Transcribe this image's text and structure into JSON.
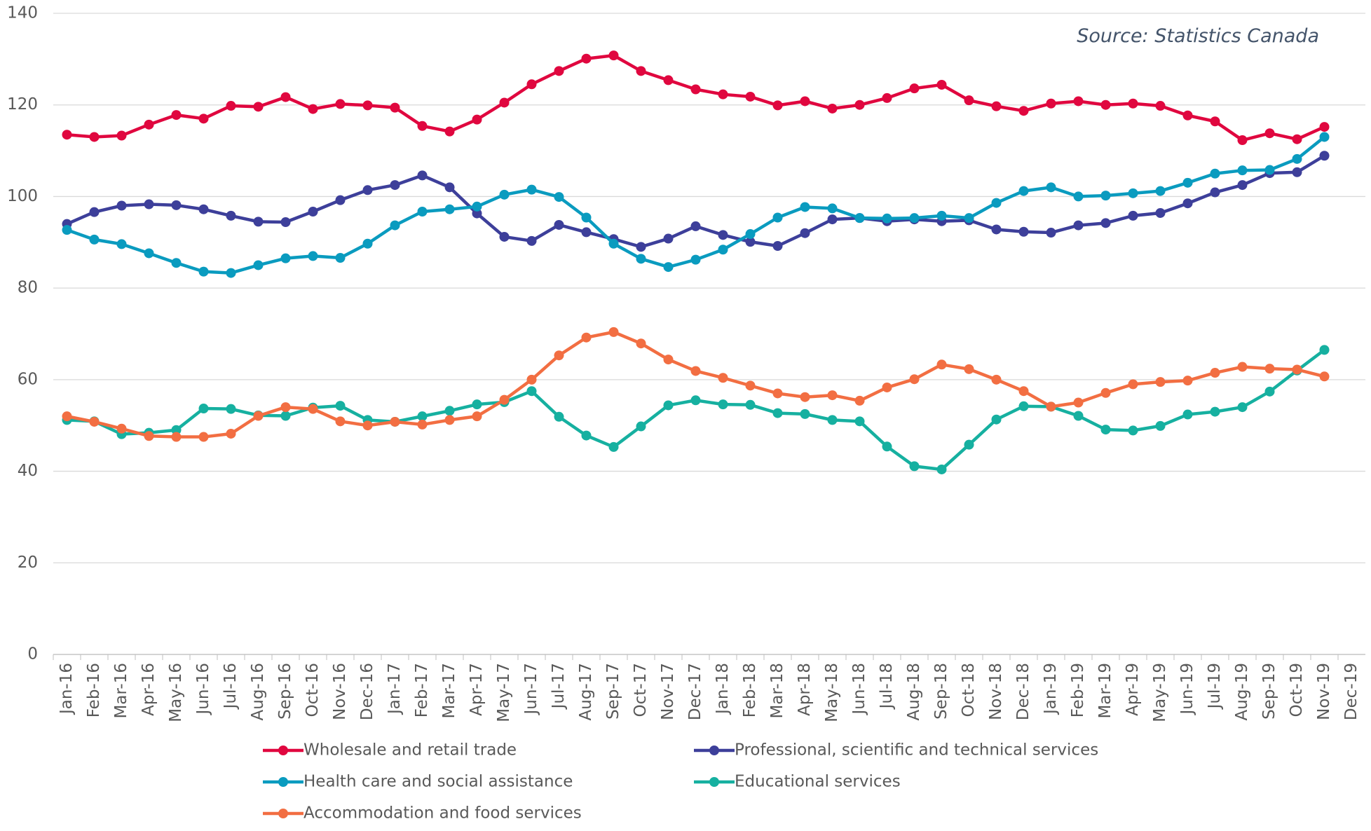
{
  "chart_data": {
    "type": "line",
    "source": "Source: Statistics Canada",
    "categories": [
      "Jan-16",
      "Feb-16",
      "Mar-16",
      "Apr-16",
      "May-16",
      "Jun-16",
      "Jul-16",
      "Aug-16",
      "Sep-16",
      "Oct-16",
      "Nov-16",
      "Dec-16",
      "Jan-17",
      "Feb-17",
      "Mar-17",
      "Apr-17",
      "May-17",
      "Jun-17",
      "Jul-17",
      "Aug-17",
      "Sep-17",
      "Oct-17",
      "Nov-17",
      "Dec-17",
      "Jan-18",
      "Feb-18",
      "Mar-18",
      "Apr-18",
      "May-18",
      "Jun-18",
      "Jul-18",
      "Aug-18",
      "Sep-18",
      "Oct-18",
      "Nov-18",
      "Dec-18",
      "Jan-19",
      "Feb-19",
      "Mar-19",
      "Apr-19",
      "May-19",
      "Jun-19",
      "Jul-19",
      "Aug-19",
      "Sep-19",
      "Oct-19",
      "Nov-19",
      "Dec-19"
    ],
    "series": [
      {
        "name": "Wholesale and retail trade",
        "color": "#e0073f",
        "values": [
          113.5,
          113,
          113.3,
          115.7,
          117.8,
          117,
          119.8,
          119.6,
          121.7,
          119.1,
          120.2,
          119.9,
          119.4,
          115.4,
          114.2,
          116.8,
          120.5,
          124.5,
          127.4,
          130.1,
          130.8,
          127.4,
          125.4,
          123.4,
          122.3,
          121.8,
          119.9,
          120.8,
          119.2,
          120,
          121.5,
          123.6,
          124.4,
          121,
          119.7,
          118.7,
          120.3,
          120.8,
          120,
          120.3,
          119.8,
          117.7,
          116.4,
          112.3,
          113.8,
          112.5,
          115.2,
          null
        ]
      },
      {
        "name": "Professional, scientific and technical services",
        "color": "#3d3f9a",
        "values": [
          94,
          96.6,
          98,
          98.3,
          98.1,
          97.2,
          95.8,
          94.5,
          94.4,
          96.7,
          99.2,
          101.4,
          102.5,
          104.6,
          102,
          96.3,
          91.2,
          90.3,
          93.8,
          92.2,
          90.7,
          89,
          90.8,
          93.5,
          91.6,
          90.1,
          89.2,
          92,
          95,
          95.3,
          94.6,
          95,
          94.6,
          94.8,
          92.8,
          92.3,
          92.1,
          93.7,
          94.2,
          95.8,
          96.4,
          98.5,
          100.9,
          102.5,
          105.1,
          105.3,
          108.9,
          null
        ]
      },
      {
        "name": "Health care and social assistance",
        "color": "#0a9bbf",
        "values": [
          92.7,
          90.6,
          89.6,
          87.6,
          85.5,
          83.6,
          83.3,
          85,
          86.5,
          87,
          86.6,
          89.7,
          93.7,
          96.7,
          97.2,
          97.8,
          100.4,
          101.5,
          99.9,
          95.4,
          89.7,
          86.4,
          84.6,
          86.2,
          88.4,
          91.8,
          95.4,
          97.7,
          97.4,
          95.3,
          95.2,
          95.3,
          95.8,
          95.3,
          98.6,
          101.2,
          102,
          100,
          100.2,
          100.7,
          101.2,
          103,
          105,
          105.7,
          105.8,
          108.2,
          113,
          null
        ]
      },
      {
        "name": "Educational services",
        "color": "#16b0a0",
        "values": [
          51.2,
          50.9,
          48.1,
          48.4,
          49,
          53.7,
          53.6,
          52.2,
          52.1,
          53.9,
          54.3,
          51.2,
          50.8,
          52,
          53.2,
          54.6,
          55.1,
          57.5,
          51.9,
          47.8,
          45.3,
          49.8,
          54.4,
          55.5,
          54.6,
          54.5,
          52.7,
          52.5,
          51.2,
          50.9,
          45.4,
          41.1,
          40.4,
          45.8,
          51.3,
          54.2,
          54.1,
          52.1,
          49.1,
          48.9,
          49.9,
          52.4,
          53,
          54,
          57.4,
          62,
          66.5,
          null
        ]
      },
      {
        "name": "Accommodation and food services",
        "color": "#f26e42",
        "values": [
          52,
          50.8,
          49.3,
          47.7,
          47.5,
          47.5,
          48.2,
          52.1,
          54,
          53.6,
          50.9,
          50,
          50.8,
          50.2,
          51.2,
          52,
          55.6,
          60,
          65.3,
          69.2,
          70.4,
          67.9,
          64.4,
          61.9,
          60.4,
          58.7,
          57,
          56.2,
          56.6,
          55.4,
          58.3,
          60.1,
          63.3,
          62.3,
          60,
          57.5,
          54.1,
          55,
          57.1,
          59,
          59.5,
          59.8,
          61.5,
          62.8,
          62.4,
          62.2,
          60.7,
          null
        ]
      }
    ],
    "ylim": [
      0,
      140
    ],
    "yticks": [
      0,
      20,
      40,
      60,
      80,
      100,
      120,
      140
    ],
    "grid": true
  }
}
